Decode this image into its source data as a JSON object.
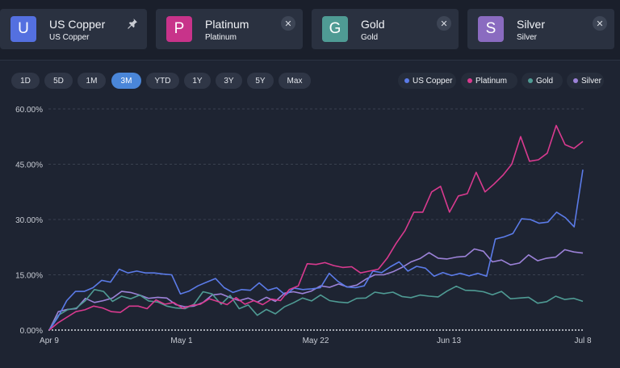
{
  "cards": [
    {
      "letter": "U",
      "name": "US Copper",
      "sub": "US Copper",
      "color": "#5470e0",
      "control": "pin-icon"
    },
    {
      "letter": "P",
      "name": "Platinum",
      "sub": "Platinum",
      "color": "#c8338a",
      "control": "close-icon"
    },
    {
      "letter": "G",
      "name": "Gold",
      "sub": "Gold",
      "color": "#4f9b94",
      "control": "close-icon"
    },
    {
      "letter": "S",
      "name": "Silver",
      "sub": "Silver",
      "color": "#8a6bc0",
      "control": "close-icon"
    }
  ],
  "ranges": {
    "items": [
      "1D",
      "5D",
      "1M",
      "3M",
      "YTD",
      "1Y",
      "3Y",
      "5Y",
      "Max"
    ],
    "active": "3M"
  },
  "chart_data": {
    "type": "line",
    "x_labels": [
      "Apr 9",
      "May 1",
      "May 22",
      "Jun 13",
      "Jul 8"
    ],
    "y_ticks": [
      "0.00%",
      "15.00%",
      "30.00%",
      "45.00%",
      "60.00%"
    ],
    "ylim": [
      0,
      60
    ],
    "grid": true,
    "legend_position": "top-right",
    "series": [
      {
        "name": "US Copper",
        "color": "#5b7be8",
        "values": [
          0,
          3.5,
          8,
          10.5,
          10.5,
          11.5,
          13.5,
          13,
          16.5,
          15.5,
          16,
          15.5,
          15.5,
          15.2,
          15,
          9.8,
          10.6,
          12,
          13,
          14,
          11.5,
          10.2,
          11,
          10.8,
          12.8,
          10.8,
          11.5,
          9.5,
          11.4,
          11,
          11.2,
          11.5,
          15.4,
          13.2,
          11.7,
          11.5,
          12,
          16,
          15.6,
          17.2,
          18.5,
          16,
          17.3,
          16.8,
          14.6,
          15.6,
          14.8,
          15.4,
          14.7,
          15.4,
          14.6,
          24.7,
          25.3,
          26.2,
          30.2,
          30,
          29,
          29.3,
          32,
          30.5,
          28,
          43.5
        ]
      },
      {
        "name": "Platinum",
        "color": "#d93a8f",
        "values": [
          0,
          2,
          3.5,
          5,
          5.5,
          6.5,
          6,
          5,
          4.8,
          6.5,
          6.5,
          5.8,
          8.2,
          7,
          7.5,
          5.9,
          6.7,
          7,
          8.5,
          7.7,
          6.9,
          8.8,
          7,
          8,
          6.9,
          8.4,
          8,
          11,
          12,
          18,
          17.8,
          18.3,
          17.5,
          17,
          17.2,
          15.5,
          16,
          16.5,
          19.5,
          23.5,
          27,
          32,
          32,
          37.5,
          39,
          32,
          36.4,
          37,
          42.8,
          37.5,
          39.6,
          42,
          45,
          52.5,
          45.8,
          46.2,
          48,
          55.5,
          50.3,
          49.3,
          51.2
        ]
      },
      {
        "name": "Gold",
        "color": "#4f9b94",
        "values": [
          0,
          4,
          5.5,
          6,
          8,
          11,
          10.5,
          7.8,
          9.2,
          8.5,
          9.5,
          7.9,
          7.6,
          6.5,
          6,
          5.8,
          7,
          10.4,
          9.8,
          7,
          9.4,
          5.8,
          6.8,
          4,
          5.6,
          4.4,
          6.3,
          7.4,
          8.7,
          7.9,
          9.5,
          8,
          7.6,
          7.4,
          8.6,
          8.7,
          10.3,
          9.9,
          10.3,
          9.1,
          8.8,
          9.5,
          9.2,
          9,
          10.6,
          11.9,
          10.8,
          10.7,
          10.4,
          9.6,
          10.5,
          8.5,
          8.7,
          8.9,
          7.3,
          7.7,
          9.2,
          8.3,
          8.6,
          7.8
        ]
      },
      {
        "name": "Silver",
        "color": "#9c82d8",
        "values": [
          0,
          5,
          5.6,
          5.8,
          8.6,
          7.5,
          8,
          8.7,
          10.5,
          10.2,
          9.5,
          8.6,
          8.9,
          8.7,
          6.9,
          6.3,
          6.5,
          7.5,
          9.5,
          9.8,
          8.8,
          8,
          8.7,
          7.6,
          8.9,
          7.8,
          10,
          10.4,
          9.9,
          10.6,
          12,
          11.6,
          12.5,
          11.7,
          12.2,
          13.8,
          15,
          15,
          15.8,
          17,
          18.5,
          19.4,
          21,
          19.5,
          19.3,
          19.8,
          20,
          22,
          21.4,
          18.5,
          19,
          17.7,
          18.2,
          20.4,
          18.8,
          19.5,
          19.8,
          21.8,
          21.2,
          20.9
        ]
      }
    ]
  }
}
